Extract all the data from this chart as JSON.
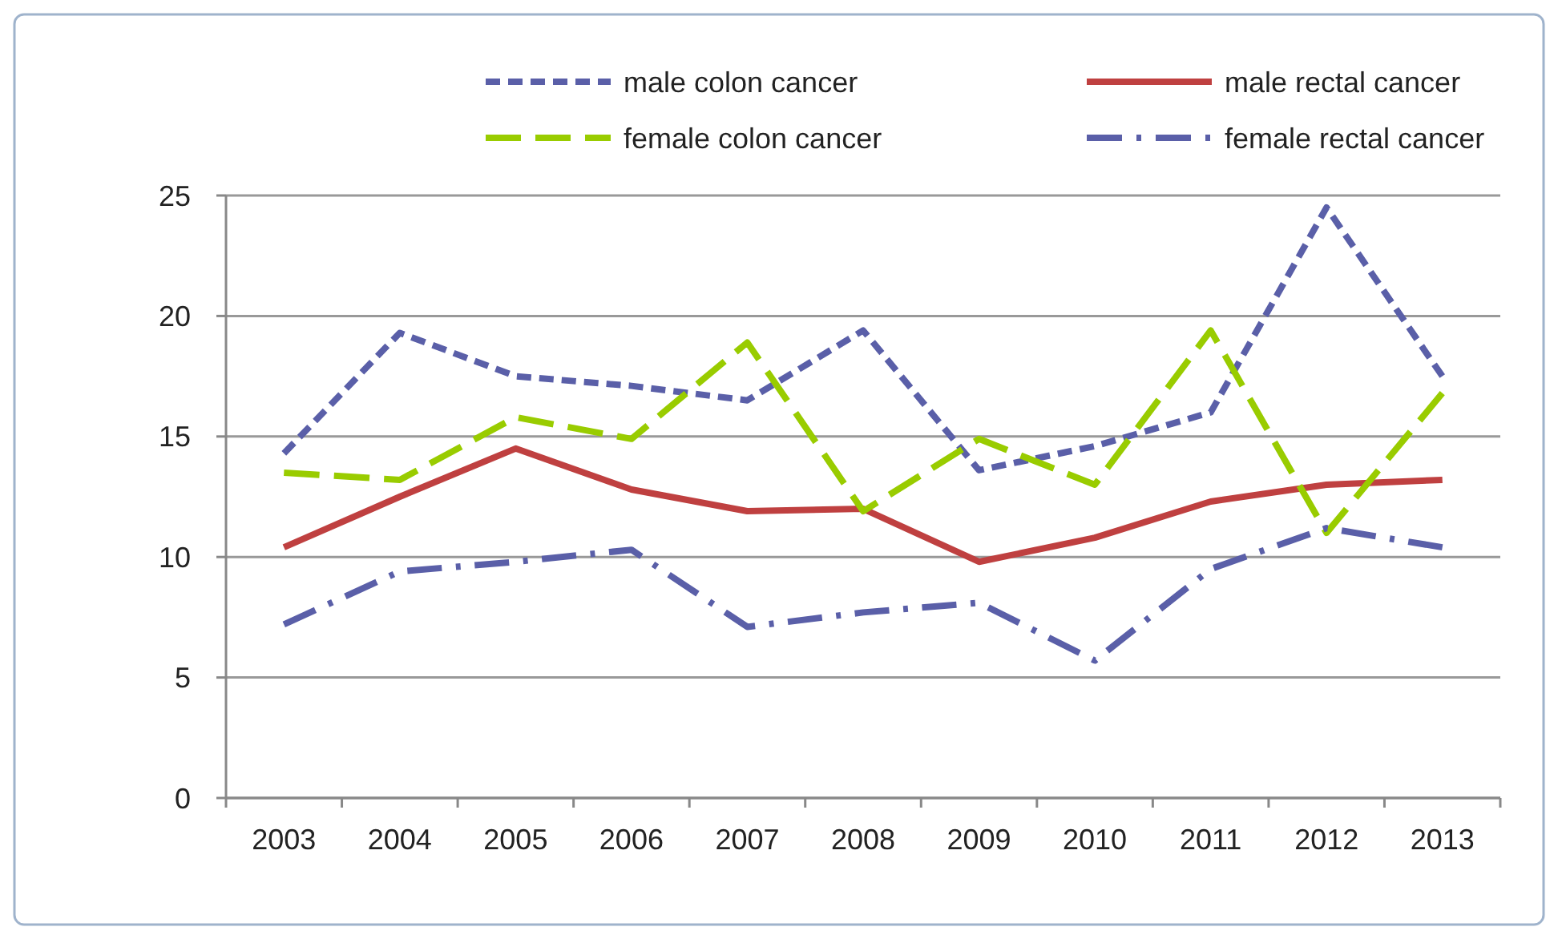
{
  "chart_data": {
    "type": "line",
    "categories": [
      "2003",
      "2004",
      "2005",
      "2006",
      "2007",
      "2008",
      "2009",
      "2010",
      "2011",
      "2012",
      "2013"
    ],
    "series": [
      {
        "name": "male colon cancer",
        "color": "#5a5fa8",
        "line_style": "dashed",
        "values": [
          14.3,
          19.3,
          17.5,
          17.1,
          16.5,
          19.4,
          13.6,
          14.6,
          16.0,
          24.5,
          17.5
        ]
      },
      {
        "name": "male rectal cancer",
        "color": "#bf4040",
        "line_style": "solid",
        "values": [
          10.4,
          12.5,
          14.5,
          12.8,
          11.9,
          12.0,
          9.8,
          10.8,
          12.3,
          13.0,
          13.2
        ]
      },
      {
        "name": "female colon cancer",
        "color": "#99cc00",
        "line_style": "longdash",
        "values": [
          13.5,
          13.2,
          15.8,
          14.9,
          18.9,
          11.9,
          14.9,
          13.0,
          19.4,
          11.0,
          16.8
        ]
      },
      {
        "name": "female rectal cancer",
        "color": "#5a5fa8",
        "line_style": "dashdot",
        "values": [
          7.2,
          9.4,
          9.8,
          10.3,
          7.1,
          7.7,
          8.1,
          5.7,
          9.5,
          11.2,
          10.4
        ]
      }
    ],
    "ylim": [
      0,
      25
    ],
    "yticks": [
      0,
      5,
      10,
      15,
      20,
      25
    ],
    "grid": "y",
    "legend": "top",
    "marker": "none"
  }
}
